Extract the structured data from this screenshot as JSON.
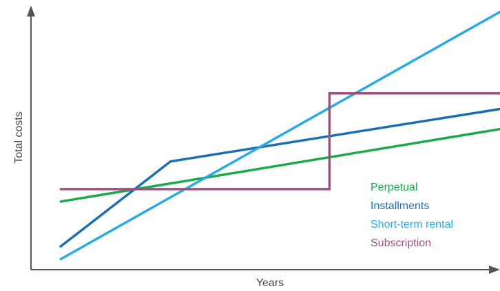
{
  "chart_data": {
    "type": "line",
    "title": "",
    "xlabel": "Years",
    "ylabel": "Total costs",
    "xlim": [
      0,
      100
    ],
    "ylim": [
      0,
      100
    ],
    "grid": false,
    "legend_position": "right",
    "series": [
      {
        "name": "Perpetual",
        "color": "#1ba94c",
        "points": [
          [
            6,
            27
          ],
          [
            98,
            56
          ]
        ]
      },
      {
        "name": "Installments",
        "color": "#1a6fb4",
        "points": [
          [
            6,
            9
          ],
          [
            29,
            43
          ],
          [
            98,
            64
          ]
        ]
      },
      {
        "name": "Short-term rental",
        "color": "#29abe2",
        "points": [
          [
            6,
            4
          ],
          [
            98,
            103
          ]
        ]
      },
      {
        "name": "Subscription",
        "color": "#a0507d",
        "points": [
          [
            6,
            32
          ],
          [
            62,
            32
          ],
          [
            62,
            70
          ],
          [
            98,
            70
          ]
        ]
      }
    ]
  }
}
